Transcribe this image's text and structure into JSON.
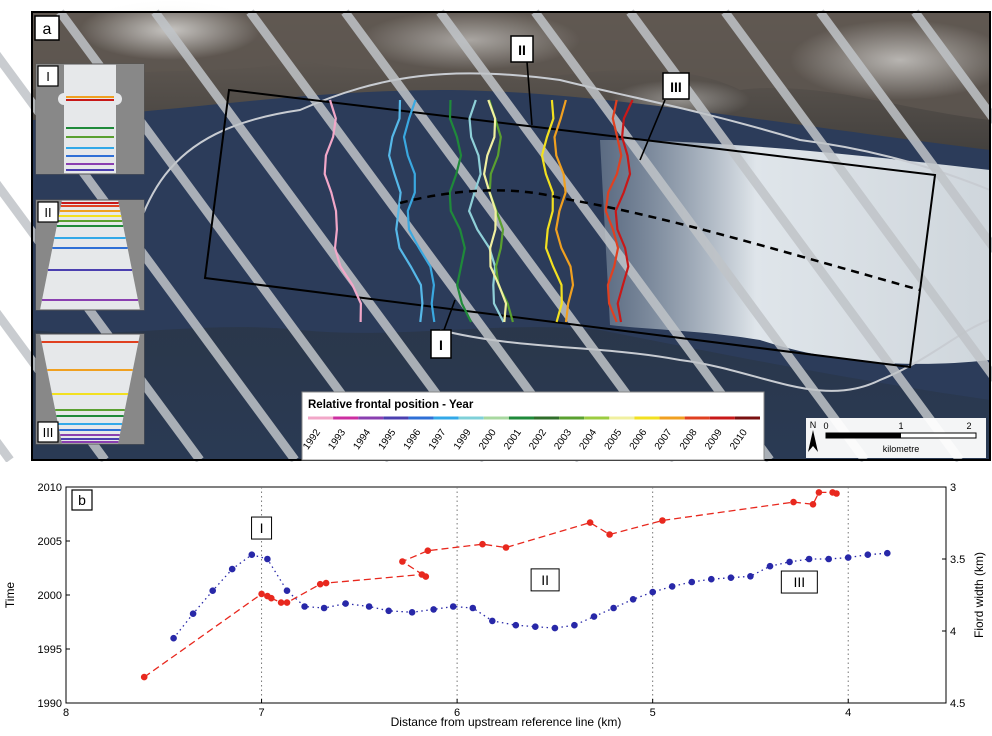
{
  "panel_a": {
    "label": "a",
    "front_labels": [
      "I",
      "II",
      "III"
    ],
    "legend": {
      "title": "Relative frontal position - Year",
      "years": [
        "1992",
        "1993",
        "1994",
        "1995",
        "1996",
        "1997",
        "1999",
        "2000",
        "2001",
        "2002",
        "2003",
        "2004",
        "2005",
        "2006",
        "2007",
        "2008",
        "2009",
        "2010"
      ],
      "colors": [
        "#f2a7c8",
        "#cc2ea0",
        "#8a3fb0",
        "#4b3fb0",
        "#2f6fd6",
        "#32a8e8",
        "#7fd0d8",
        "#a8d8a0",
        "#1f8a3a",
        "#2f6e2a",
        "#5aa030",
        "#9ccc40",
        "#f0f0a0",
        "#f2e020",
        "#f0a020",
        "#e04020",
        "#c81818",
        "#7a1010"
      ]
    },
    "scale_bar": {
      "north": "N",
      "ticks": [
        "0",
        "1",
        "2"
      ],
      "unit": "kilometre"
    },
    "insets": [
      "I",
      "II",
      "III"
    ]
  },
  "chart_data": {
    "type": "scatter",
    "panel_label": "b",
    "xlabel": "Distance from upstream reference line (km)",
    "ylabel": "Time",
    "ylabel_right": "Fiord width (km)",
    "xlim": [
      8,
      3.5
    ],
    "ylim": [
      1990,
      2010
    ],
    "ylim_right": [
      4.5,
      3
    ],
    "x_ticks": [
      8,
      7,
      6,
      5,
      4
    ],
    "y_ticks": [
      1990,
      1995,
      2000,
      2005,
      2010
    ],
    "y_right_ticks": [
      4.5,
      4,
      3.5,
      3
    ],
    "vlines": [
      7,
      6,
      5,
      4
    ],
    "grid": false,
    "region_labels": [
      {
        "text": "I",
        "x": 7.0,
        "y": 2006.2
      },
      {
        "text": "II",
        "x": 5.55,
        "y": 2001.4
      },
      {
        "text": "III",
        "x": 4.25,
        "y": 2001.2
      }
    ],
    "series": [
      {
        "color": "#e8281e",
        "axis": "left",
        "style": "dashed",
        "x": [
          7.6,
          7.0,
          6.97,
          6.95,
          6.9,
          6.87,
          6.7,
          6.67,
          6.18,
          6.16,
          6.28,
          6.15,
          5.87,
          5.75,
          5.32,
          5.22,
          4.95,
          4.28,
          4.18,
          4.15,
          4.08,
          4.06
        ],
        "y": [
          1992.4,
          2000.1,
          1999.9,
          1999.7,
          1999.3,
          1999.3,
          2001.0,
          2001.1,
          2001.9,
          2001.7,
          2003.1,
          2004.1,
          2004.7,
          2004.4,
          2006.7,
          2005.6,
          2006.9,
          2008.6,
          2008.4,
          2009.5,
          2009.5,
          2009.4
        ]
      },
      {
        "color": "#2828a8",
        "axis": "right",
        "style": "dotted",
        "x": [
          7.45,
          7.35,
          7.25,
          7.15,
          7.05,
          6.97,
          6.87,
          6.78,
          6.68,
          6.57,
          6.45,
          6.35,
          6.23,
          6.12,
          6.02,
          5.92,
          5.82,
          5.7,
          5.6,
          5.5,
          5.4,
          5.3,
          5.2,
          5.1,
          5.0,
          4.9,
          4.8,
          4.7,
          4.6,
          4.5,
          4.4,
          4.3,
          4.2,
          4.1,
          4.0,
          3.9,
          3.8
        ],
        "y": [
          4.05,
          3.88,
          3.72,
          3.57,
          3.47,
          3.5,
          3.72,
          3.83,
          3.84,
          3.81,
          3.83,
          3.86,
          3.87,
          3.85,
          3.83,
          3.84,
          3.93,
          3.96,
          3.97,
          3.98,
          3.96,
          3.9,
          3.84,
          3.78,
          3.73,
          3.69,
          3.66,
          3.64,
          3.63,
          3.62,
          3.55,
          3.52,
          3.5,
          3.5,
          3.49,
          3.47,
          3.46
        ]
      }
    ]
  }
}
